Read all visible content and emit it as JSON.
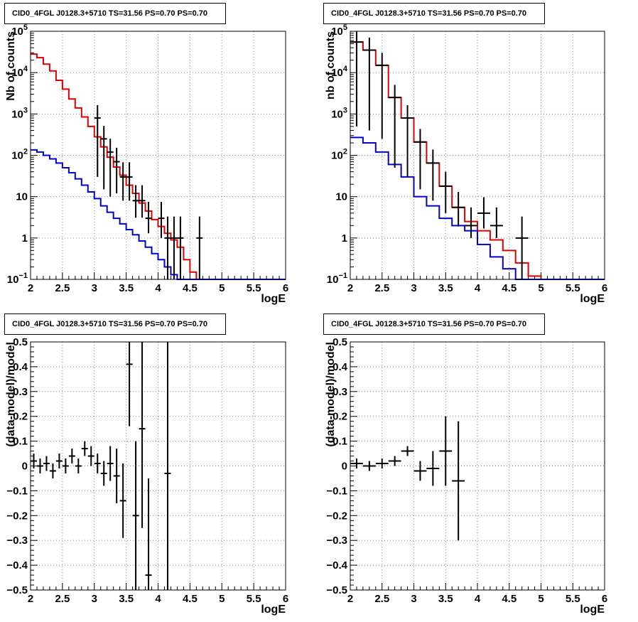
{
  "charts": [
    {
      "title": "CID0_4FGL J0128.3+5710 TS=31.56 PS=0.70 PS=0.70",
      "xlabel": "logE",
      "ylabel": "Nb of counts",
      "xlim": [
        2,
        6
      ],
      "xticks": [
        "2",
        "2.5",
        "3",
        "3.5",
        "4",
        "4.5",
        "5",
        "5.5",
        "6"
      ],
      "ylim": [
        0.1,
        100000
      ],
      "yscale": "log",
      "yticks": [
        {
          "v": 0.1,
          "base": "10",
          "exp": "−1"
        },
        {
          "v": 1,
          "base": "1"
        },
        {
          "v": 10,
          "base": "10"
        },
        {
          "v": 100,
          "base": "10",
          "exp": "2"
        },
        {
          "v": 1000,
          "base": "10",
          "exp": "3"
        },
        {
          "v": 10000,
          "base": "10",
          "exp": "4"
        },
        {
          "v": 100000,
          "base": "10",
          "exp": "5"
        }
      ],
      "grid": true
    },
    {
      "title": "CID0_4FGL J0128.3+5710 TS=31.56 PS=0.70 PS=0.70",
      "xlabel": "logE",
      "ylabel": "nb of counts",
      "xlim": [
        2,
        6
      ],
      "xticks": [
        "2",
        "2.5",
        "3",
        "3.5",
        "4",
        "4.5",
        "5",
        "5.5",
        "6"
      ],
      "ylim": [
        0.1,
        100000
      ],
      "yscale": "log",
      "yticks": [
        {
          "v": 0.1,
          "base": "10",
          "exp": "−1"
        },
        {
          "v": 1,
          "base": "1"
        },
        {
          "v": 10,
          "base": "10"
        },
        {
          "v": 100,
          "base": "10",
          "exp": "2"
        },
        {
          "v": 1000,
          "base": "10",
          "exp": "3"
        },
        {
          "v": 10000,
          "base": "10",
          "exp": "4"
        },
        {
          "v": 100000,
          "base": "10",
          "exp": "5"
        }
      ],
      "grid": true
    },
    {
      "title": "CID0_4FGL J0128.3+5710 TS=31.56 PS=0.70 PS=0.70",
      "xlabel": "logE",
      "ylabel": "(data-model)/model",
      "xlim": [
        2,
        6
      ],
      "xticks": [
        "2",
        "2.5",
        "3",
        "3.5",
        "4",
        "4.5",
        "5",
        "5.5",
        "6"
      ],
      "ylim": [
        -0.5,
        0.5
      ],
      "yscale": "linear",
      "yticks": [
        {
          "v": -0.5,
          "base": "−0.5"
        },
        {
          "v": -0.4,
          "base": "−0.4"
        },
        {
          "v": -0.3,
          "base": "−0.3"
        },
        {
          "v": -0.2,
          "base": "−0.2"
        },
        {
          "v": -0.1,
          "base": "−0.1"
        },
        {
          "v": 0,
          "base": "0"
        },
        {
          "v": 0.1,
          "base": "0.1"
        },
        {
          "v": 0.2,
          "base": "0.2"
        },
        {
          "v": 0.3,
          "base": "0.3"
        },
        {
          "v": 0.4,
          "base": "0.4"
        },
        {
          "v": 0.5,
          "base": "0.5"
        }
      ],
      "grid": true
    },
    {
      "title": "CID0_4FGL J0128.3+5710 TS=31.56 PS=0.70 PS=0.70",
      "xlabel": "logE",
      "ylabel": "(data-model)/model",
      "xlim": [
        2,
        6
      ],
      "xticks": [
        "2",
        "2.5",
        "3",
        "3.5",
        "4",
        "4.5",
        "5",
        "5.5",
        "6"
      ],
      "ylim": [
        -0.5,
        0.5
      ],
      "yscale": "linear",
      "yticks": [
        {
          "v": -0.5,
          "base": "−0.5"
        },
        {
          "v": -0.4,
          "base": "−0.4"
        },
        {
          "v": -0.3,
          "base": "−0.3"
        },
        {
          "v": -0.2,
          "base": "−0.2"
        },
        {
          "v": -0.1,
          "base": "−0.1"
        },
        {
          "v": 0,
          "base": "0"
        },
        {
          "v": 0.1,
          "base": "0.1"
        },
        {
          "v": 0.2,
          "base": "0.2"
        },
        {
          "v": 0.3,
          "base": "0.3"
        },
        {
          "v": 0.4,
          "base": "0.4"
        },
        {
          "v": 0.5,
          "base": "0.5"
        }
      ],
      "grid": true
    }
  ],
  "colors": {
    "total_model": "#e00000",
    "background_model": "#0000d0",
    "data": "#000000",
    "grid": "#888888"
  },
  "chart_data": [
    {
      "type": "line",
      "title": "CID0_4FGL J0128.3+5710 TS=31.56 PS=0.70 PS=0.70",
      "xlabel": "logE",
      "ylabel": "Nb of counts",
      "xlim": [
        2,
        6
      ],
      "ylim": [
        0.1,
        100000
      ],
      "yscale": "log",
      "bin_edges": [
        2.0,
        2.1,
        2.2,
        2.3,
        2.4,
        2.5,
        2.6,
        2.7,
        2.8,
        2.9,
        3.0,
        3.1,
        3.2,
        3.3,
        3.4,
        3.5,
        3.6,
        3.7,
        3.8,
        3.9,
        4.0,
        4.1,
        4.2,
        4.3,
        4.4,
        4.5,
        4.6,
        4.7,
        4.8,
        4.9,
        5.0,
        5.1,
        5.2,
        5.3,
        5.4,
        5.5,
        5.6,
        5.7,
        5.8,
        5.9,
        6.0
      ],
      "series": [
        {
          "values": [
            28000,
            23000,
            16000,
            11000,
            6500,
            4000,
            2300,
            1400,
            850,
            500,
            280,
            160,
            90,
            52,
            33,
            19,
            12,
            7,
            4.5,
            2.8,
            1.9,
            1.3,
            0.9,
            0.6,
            0.3,
            0.15,
            0.1,
            0.1,
            0.1,
            0.1,
            0.1,
            0.1,
            0.1,
            0.1,
            0.1,
            0.1,
            0.1,
            0.1,
            0.1,
            0.1
          ]
        },
        {
          "values": [
            135,
            120,
            100,
            82,
            65,
            50,
            38,
            27,
            19,
            13,
            9,
            6,
            4.2,
            3,
            2.2,
            1.6,
            1.2,
            0.85,
            0.6,
            0.42,
            0.3,
            0.2,
            0.13,
            0.1,
            0.1,
            0.1,
            0.1,
            0.1,
            0.1,
            0.1,
            0.1,
            0.1,
            0.1,
            0.1,
            0.1,
            0.1,
            0.1,
            0.1,
            0.1,
            0.1
          ]
        }
      ],
      "data_points": {
        "x": [
          3.05,
          3.15,
          3.25,
          3.35,
          3.45,
          3.55,
          3.65,
          3.75,
          3.85,
          4.05,
          4.15,
          4.25,
          4.35,
          4.65
        ],
        "y": [
          800,
          250,
          120,
          70,
          30,
          30,
          8,
          8,
          3,
          3,
          1,
          1,
          1,
          1
        ],
        "err_low": [
          770,
          235,
          110,
          58,
          22,
          22,
          4.9,
          4.9,
          1.7,
          2.0,
          0.9,
          0.9,
          0.9,
          0.9
        ],
        "err_high": [
          830,
          265,
          132,
          82,
          38,
          38,
          11,
          11,
          4.5,
          4.5,
          2.3,
          2.3,
          2.3,
          2.3
        ]
      }
    },
    {
      "type": "line",
      "title": "CID0_4FGL J0128.3+5710 TS=31.56 PS=0.70 PS=0.70",
      "xlabel": "logE",
      "ylabel": "nb of counts",
      "xlim": [
        2,
        6
      ],
      "ylim": [
        0.1,
        100000
      ],
      "yscale": "log",
      "bin_edges": [
        2.0,
        2.2,
        2.4,
        2.6,
        2.8,
        3.0,
        3.2,
        3.4,
        3.6,
        3.8,
        4.0,
        4.2,
        4.4,
        4.6,
        4.8,
        5.0,
        5.2,
        5.4,
        5.6,
        5.8,
        6.0
      ],
      "series": [
        {
          "values": [
            55000,
            35000,
            15000,
            2500,
            800,
            210,
            65,
            18,
            5.5,
            2.5,
            1.5,
            0.9,
            0.5,
            0.25,
            0.12,
            0.1,
            0.1,
            0.1,
            0.1,
            0.1
          ]
        },
        {
          "values": [
            270,
            200,
            120,
            60,
            30,
            10,
            6,
            3,
            2,
            1.5,
            0.7,
            0.35,
            0.18,
            0.1,
            0.1,
            0.1,
            0.1,
            0.1,
            0.1,
            0.1
          ]
        }
      ],
      "data_points": {
        "x": [
          2.1,
          2.3,
          2.5,
          2.7,
          2.9,
          3.1,
          3.3,
          3.5,
          3.7,
          3.9,
          4.1,
          4.3,
          4.7
        ],
        "y": [
          55000,
          35000,
          15000,
          2500,
          800,
          210,
          65,
          18,
          5.5,
          2,
          4,
          2,
          1
        ],
        "err_low": [
          54500,
          34600,
          14750,
          2450,
          770,
          195,
          57,
          14,
          3.6,
          1.0,
          2.3,
          1.0,
          0.9
        ],
        "err_high": [
          55500,
          35400,
          15250,
          2550,
          830,
          225,
          73,
          22,
          7.5,
          3.5,
          5.7,
          3.5,
          2.3
        ]
      }
    },
    {
      "type": "scatter",
      "title": "CID0_4FGL J0128.3+5710 TS=31.56 PS=0.70 PS=0.70",
      "xlabel": "logE",
      "ylabel": "(data-model)/model",
      "xlim": [
        2,
        6
      ],
      "ylim": [
        -0.5,
        0.5
      ],
      "data_points": {
        "x": [
          2.05,
          2.15,
          2.25,
          2.35,
          2.45,
          2.55,
          2.65,
          2.75,
          2.85,
          2.95,
          3.05,
          3.15,
          3.25,
          3.35,
          3.45,
          3.55,
          3.65,
          3.75,
          3.85,
          4.15
        ],
        "y": [
          0.02,
          0.0,
          0.01,
          -0.02,
          0.02,
          0.0,
          0.04,
          0.0,
          0.07,
          0.04,
          0.01,
          -0.03,
          0.01,
          -0.04,
          -0.14,
          0.41,
          -0.2,
          0.15,
          -0.44,
          -0.03
        ],
        "err": [
          0.03,
          0.03,
          0.03,
          0.03,
          0.03,
          0.03,
          0.03,
          0.03,
          0.03,
          0.04,
          0.04,
          0.05,
          0.07,
          0.11,
          0.15,
          0.25,
          0.3,
          0.4,
          0.39,
          0.55
        ]
      }
    },
    {
      "type": "scatter",
      "title": "CID0_4FGL J0128.3+5710 TS=31.56 PS=0.70 PS=0.70",
      "xlabel": "logE",
      "ylabel": "(data-model)/model",
      "xlim": [
        2,
        6
      ],
      "ylim": [
        -0.5,
        0.5
      ],
      "data_points": {
        "x": [
          2.1,
          2.3,
          2.5,
          2.7,
          2.9,
          3.1,
          3.3,
          3.5,
          3.7
        ],
        "y": [
          0.01,
          0.0,
          0.01,
          0.02,
          0.06,
          -0.02,
          -0.01,
          0.06,
          -0.06
        ],
        "err": [
          0.02,
          0.02,
          0.02,
          0.02,
          0.02,
          0.04,
          0.07,
          0.14,
          0.24
        ]
      }
    }
  ]
}
